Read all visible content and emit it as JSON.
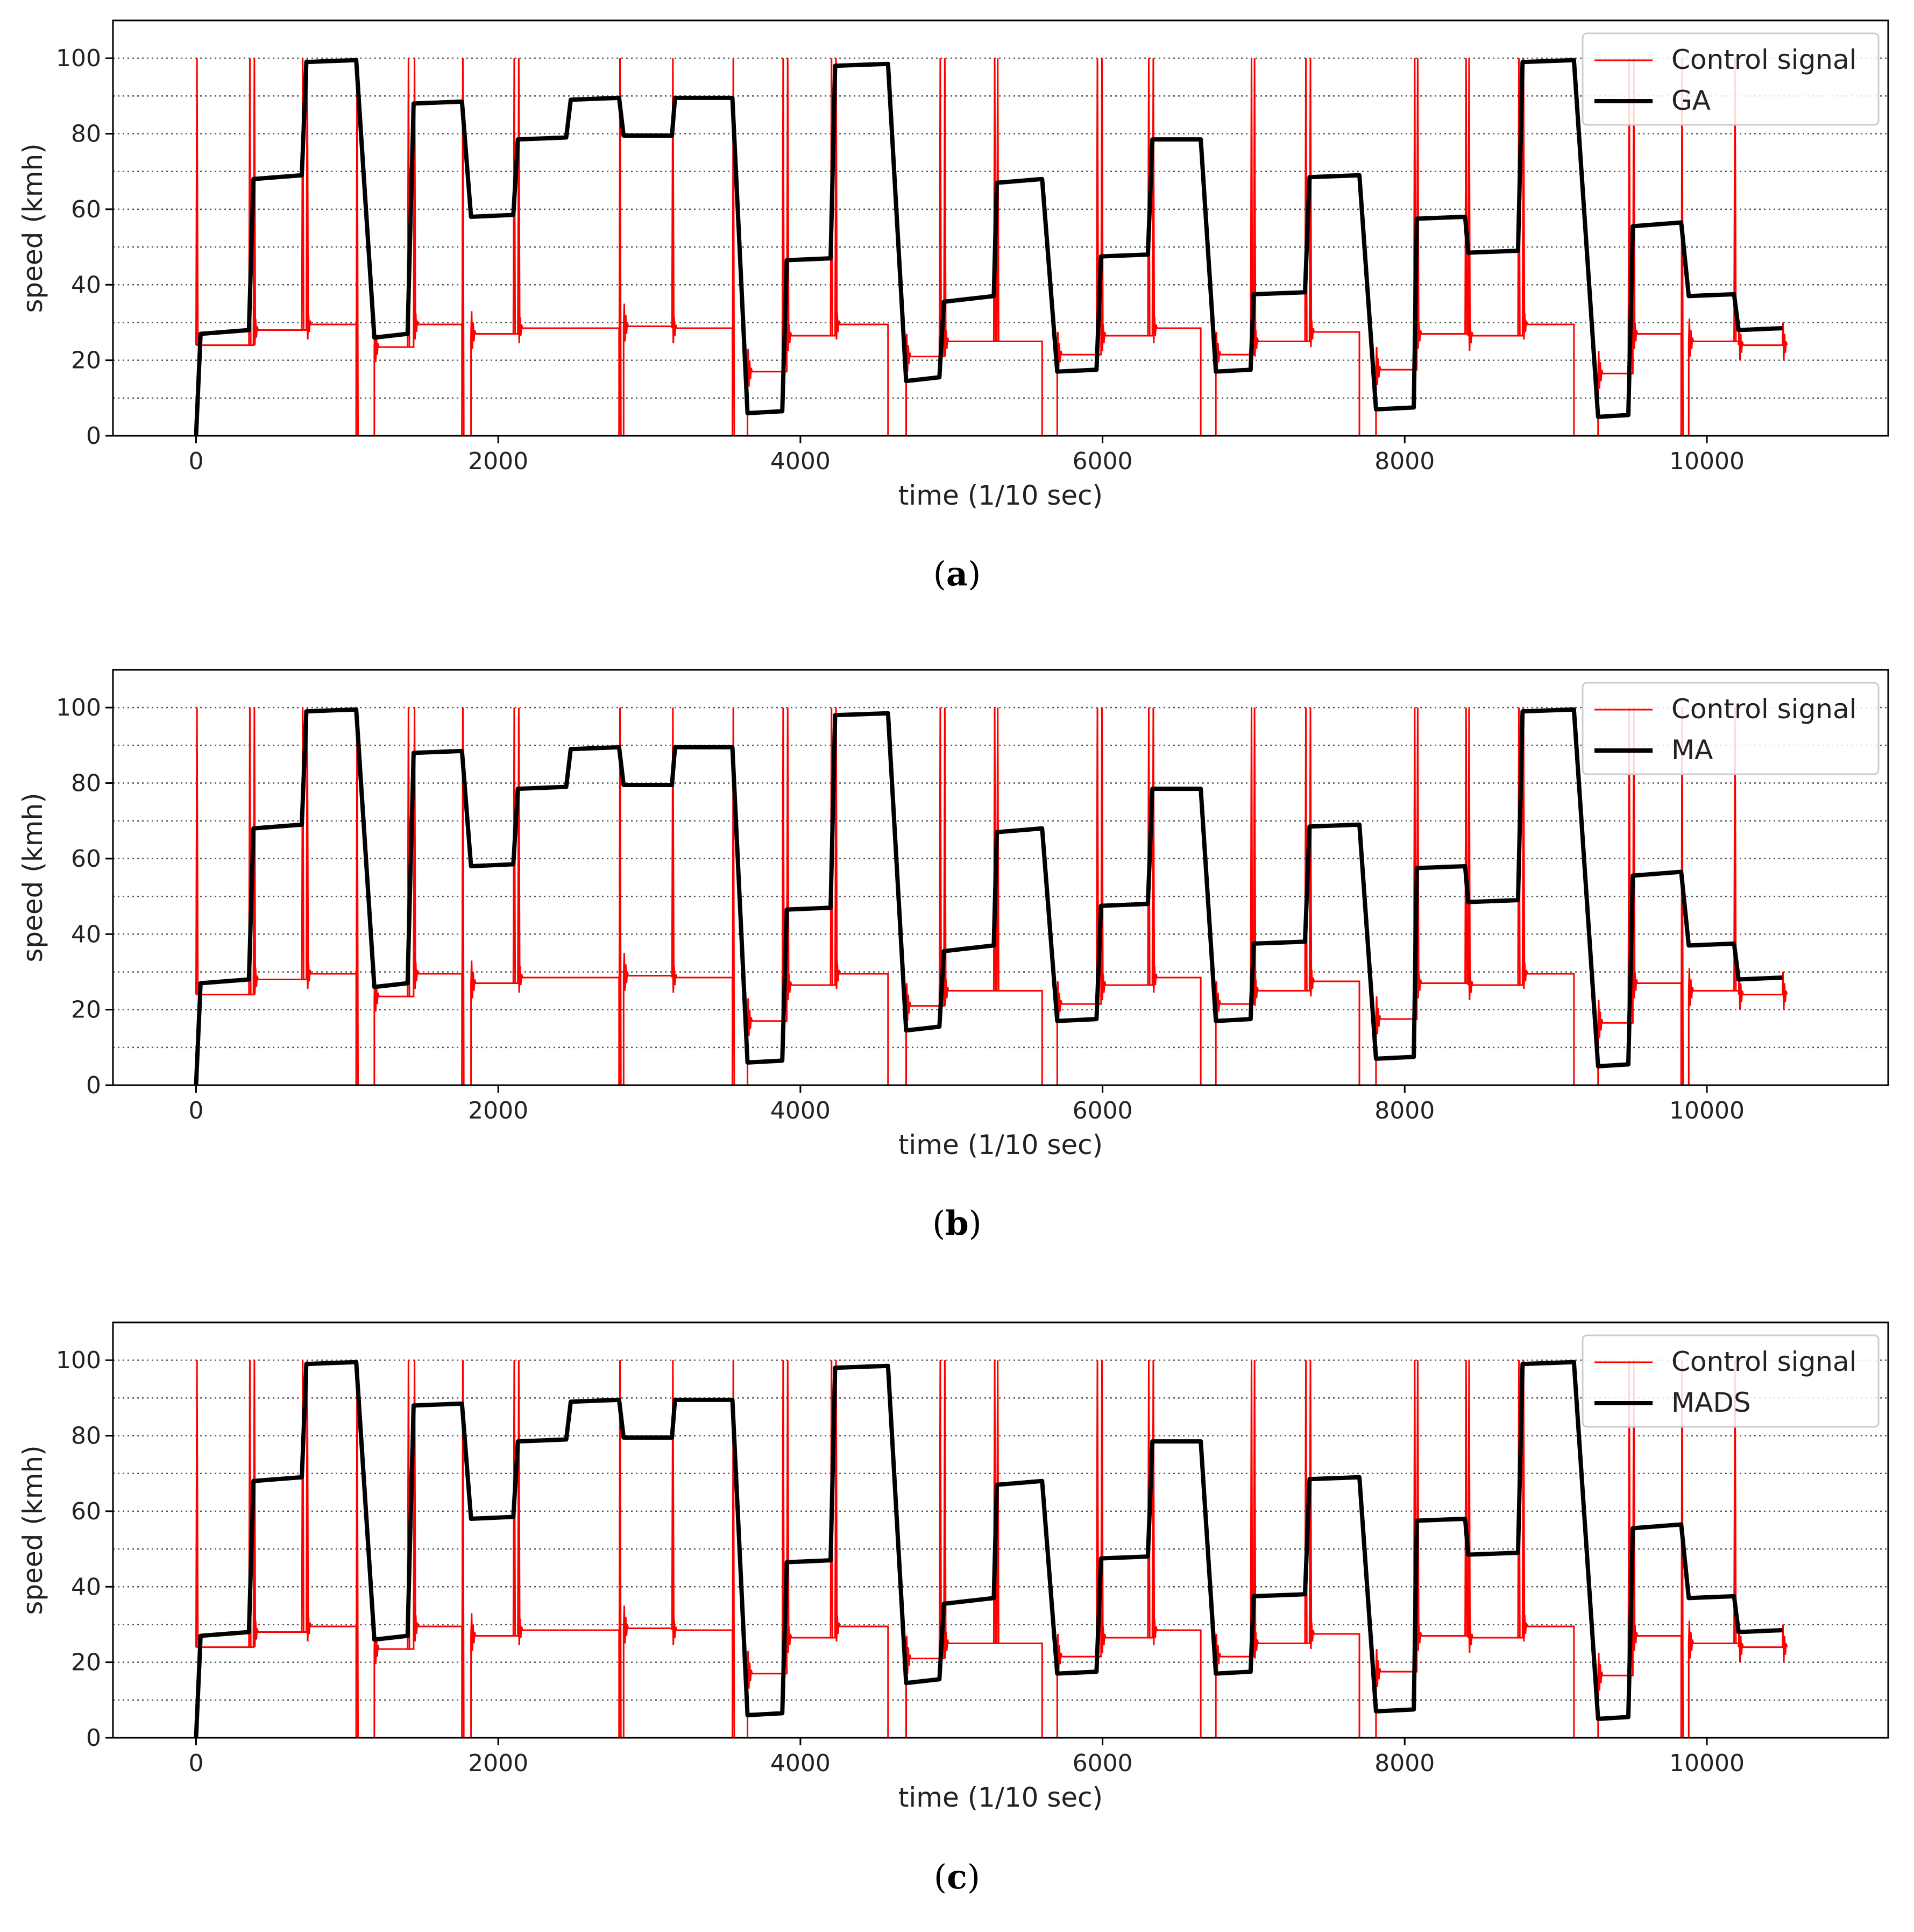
{
  "colors": {
    "control": "#ff0000",
    "speed": "#000000",
    "grid": "#555555",
    "axis": "#000000",
    "legend_border": "#cccccc"
  },
  "chart_data": [
    {
      "type": "line",
      "panel": "(a)",
      "caption_letter": "a",
      "xlabel": "time (1/10 sec)",
      "ylabel": "speed (kmh)",
      "xlim": [
        -550,
        11200
      ],
      "ylim": [
        0,
        110
      ],
      "xticks": [
        0,
        2000,
        4000,
        6000,
        8000,
        10000
      ],
      "xtick_labels": [
        "0",
        "2000",
        "4000",
        "6000",
        "8000",
        "10000"
      ],
      "yticks": [
        0,
        20,
        40,
        60,
        80,
        100
      ],
      "ytick_labels": [
        "0",
        "20",
        "40",
        "60",
        "80",
        "100"
      ],
      "grid_y": [
        10,
        20,
        30,
        40,
        50,
        60,
        70,
        80,
        90,
        100
      ],
      "legend_position": "top-right",
      "series": [
        {
          "name": "Control signal",
          "role": "control"
        },
        {
          "name": "GA",
          "role": "speed"
        }
      ]
    },
    {
      "type": "line",
      "panel": "(b)",
      "caption_letter": "b",
      "xlabel": "time (1/10 sec)",
      "ylabel": "speed (kmh)",
      "xlim": [
        -550,
        11200
      ],
      "ylim": [
        0,
        110
      ],
      "xticks": [
        0,
        2000,
        4000,
        6000,
        8000,
        10000
      ],
      "xtick_labels": [
        "0",
        "2000",
        "4000",
        "6000",
        "8000",
        "10000"
      ],
      "yticks": [
        0,
        20,
        40,
        60,
        80,
        100
      ],
      "ytick_labels": [
        "0",
        "20",
        "40",
        "60",
        "80",
        "100"
      ],
      "grid_y": [
        10,
        20,
        30,
        40,
        50,
        60,
        70,
        80,
        90,
        100
      ],
      "legend_position": "top-right",
      "series": [
        {
          "name": "Control signal",
          "role": "control"
        },
        {
          "name": "MA",
          "role": "speed"
        }
      ]
    },
    {
      "type": "line",
      "panel": "(c)",
      "caption_letter": "c",
      "xlabel": "time (1/10 sec)",
      "ylabel": "speed (kmh)",
      "xlim": [
        -550,
        11200
      ],
      "ylim": [
        0,
        110
      ],
      "xticks": [
        0,
        2000,
        4000,
        6000,
        8000,
        10000
      ],
      "xtick_labels": [
        "0",
        "2000",
        "4000",
        "6000",
        "8000",
        "10000"
      ],
      "yticks": [
        0,
        20,
        40,
        60,
        80,
        100
      ],
      "ytick_labels": [
        "0",
        "20",
        "40",
        "60",
        "80",
        "100"
      ],
      "grid_y": [
        10,
        20,
        30,
        40,
        50,
        60,
        70,
        80,
        90,
        100
      ],
      "legend_position": "top-right",
      "series": [
        {
          "name": "Control signal",
          "role": "control"
        },
        {
          "name": "MADS",
          "role": "speed"
        }
      ]
    }
  ],
  "speed_profile": [
    [
      0,
      0
    ],
    [
      30,
      27
    ],
    [
      350,
      28
    ],
    [
      380,
      68
    ],
    [
      700,
      69
    ],
    [
      730,
      99
    ],
    [
      1060,
      99.5
    ],
    [
      1180,
      26
    ],
    [
      1400,
      27
    ],
    [
      1440,
      88
    ],
    [
      1760,
      88.5
    ],
    [
      1820,
      58
    ],
    [
      2100,
      58.5
    ],
    [
      2130,
      78.5
    ],
    [
      2450,
      79
    ],
    [
      2480,
      89
    ],
    [
      2800,
      89.5
    ],
    [
      2830,
      79.5
    ],
    [
      3150,
      79.5
    ],
    [
      3170,
      89.5
    ],
    [
      3550,
      89.5
    ],
    [
      3650,
      6
    ],
    [
      3880,
      6.5
    ],
    [
      3910,
      46.5
    ],
    [
      4200,
      47
    ],
    [
      4230,
      98
    ],
    [
      4580,
      98.5
    ],
    [
      4700,
      14.5
    ],
    [
      4920,
      15.5
    ],
    [
      4950,
      35.5
    ],
    [
      5280,
      37
    ],
    [
      5300,
      67
    ],
    [
      5600,
      68
    ],
    [
      5700,
      17
    ],
    [
      5960,
      17.5
    ],
    [
      5990,
      47.5
    ],
    [
      6300,
      48
    ],
    [
      6330,
      78.5
    ],
    [
      6650,
      78.5
    ],
    [
      6750,
      17
    ],
    [
      6980,
      17.5
    ],
    [
      7000,
      37.5
    ],
    [
      7340,
      38
    ],
    [
      7370,
      68.5
    ],
    [
      7700,
      69
    ],
    [
      7810,
      7
    ],
    [
      8060,
      7.5
    ],
    [
      8080,
      57.5
    ],
    [
      8400,
      58
    ],
    [
      8420,
      48.5
    ],
    [
      8750,
      49
    ],
    [
      8780,
      99
    ],
    [
      9120,
      99.5
    ],
    [
      9280,
      5
    ],
    [
      9480,
      5.5
    ],
    [
      9510,
      55.5
    ],
    [
      9830,
      56.5
    ],
    [
      9880,
      37
    ],
    [
      10180,
      37.5
    ],
    [
      10210,
      28
    ],
    [
      10500,
      28.5
    ]
  ],
  "control_levels": [
    [
      0,
      24
    ],
    [
      380,
      28
    ],
    [
      730,
      29.5
    ],
    [
      1060,
      0
    ],
    [
      1180,
      23.5
    ],
    [
      1440,
      29.5
    ],
    [
      1760,
      0
    ],
    [
      1820,
      27
    ],
    [
      2130,
      28.5
    ],
    [
      2800,
      0
    ],
    [
      2830,
      29
    ],
    [
      3150,
      28.5
    ],
    [
      3550,
      0
    ],
    [
      3650,
      17
    ],
    [
      3910,
      26.5
    ],
    [
      4230,
      29.5
    ],
    [
      4580,
      0
    ],
    [
      4700,
      21
    ],
    [
      4950,
      25
    ],
    [
      5600,
      0
    ],
    [
      5700,
      21.5
    ],
    [
      5990,
      26.5
    ],
    [
      6330,
      28.5
    ],
    [
      6650,
      0
    ],
    [
      6750,
      21.5
    ],
    [
      7000,
      25
    ],
    [
      7370,
      27.5
    ],
    [
      7700,
      0
    ],
    [
      7810,
      17.5
    ],
    [
      8080,
      27
    ],
    [
      8420,
      26.5
    ],
    [
      8780,
      29.5
    ],
    [
      9120,
      0
    ],
    [
      9280,
      16.5
    ],
    [
      9510,
      27
    ],
    [
      9830,
      0
    ],
    [
      9880,
      25
    ],
    [
      10210,
      24
    ],
    [
      10500,
      24
    ]
  ],
  "control_spikes": [
    0,
    350,
    380,
    700,
    730,
    1060,
    1400,
    1440,
    1760,
    2100,
    2130,
    2800,
    3150,
    3550,
    3880,
    3910,
    4200,
    4230,
    4920,
    4950,
    5280,
    5300,
    5960,
    5990,
    6300,
    6330,
    6980,
    7000,
    7340,
    7370,
    8060,
    8080,
    8400,
    8420,
    8750,
    8780,
    9480,
    9510,
    9830,
    10180
  ]
}
